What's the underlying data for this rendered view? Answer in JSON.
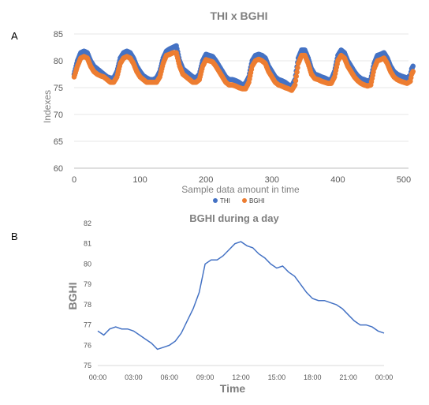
{
  "panels": {
    "a": "A",
    "b": "B"
  },
  "chart_data": [
    {
      "type": "scatter",
      "title": "THI x BGHI",
      "xlabel": "Sample data amount in time",
      "ylabel": "Indexes",
      "xlim": [
        0,
        500
      ],
      "ylim": [
        60,
        85
      ],
      "x_ticks": [
        "0",
        "100",
        "200",
        "300",
        "400",
        "500"
      ],
      "y_ticks": [
        "60",
        "65",
        "70",
        "75",
        "80",
        "85"
      ],
      "legend_position": "bottom-center",
      "series": [
        {
          "name": "THI",
          "color": "#4472c4",
          "points": [
            [
              0,
              77.5
            ],
            [
              5,
              80
            ],
            [
              10,
              81.5
            ],
            [
              15,
              81.8
            ],
            [
              20,
              81.5
            ],
            [
              25,
              80
            ],
            [
              30,
              79
            ],
            [
              35,
              78.5
            ],
            [
              40,
              78
            ],
            [
              45,
              77.5
            ],
            [
              50,
              77
            ],
            [
              55,
              76.8
            ],
            [
              60,
              76.8
            ],
            [
              65,
              78
            ],
            [
              70,
              80.5
            ],
            [
              75,
              81.5
            ],
            [
              80,
              81.8
            ],
            [
              85,
              81.5
            ],
            [
              90,
              80.5
            ],
            [
              95,
              79
            ],
            [
              100,
              78
            ],
            [
              105,
              77.2
            ],
            [
              110,
              76.8
            ],
            [
              115,
              76.5
            ],
            [
              120,
              76.5
            ],
            [
              125,
              76.8
            ],
            [
              130,
              78
            ],
            [
              135,
              80.5
            ],
            [
              140,
              81.8
            ],
            [
              145,
              82.2
            ],
            [
              150,
              82.5
            ],
            [
              155,
              82.8
            ],
            [
              160,
              80
            ],
            [
              165,
              78.5
            ],
            [
              170,
              78
            ],
            [
              175,
              77.5
            ],
            [
              180,
              77
            ],
            [
              185,
              76.8
            ],
            [
              190,
              77.5
            ],
            [
              195,
              80
            ],
            [
              200,
              81.2
            ],
            [
              205,
              81
            ],
            [
              210,
              80.8
            ],
            [
              215,
              80
            ],
            [
              220,
              79
            ],
            [
              225,
              78
            ],
            [
              230,
              77
            ],
            [
              235,
              76.5
            ],
            [
              240,
              76.5
            ],
            [
              245,
              76.3
            ],
            [
              250,
              76
            ],
            [
              255,
              75.5
            ],
            [
              260,
              75.8
            ],
            [
              265,
              77
            ],
            [
              270,
              80
            ],
            [
              275,
              81
            ],
            [
              280,
              81.2
            ],
            [
              285,
              81
            ],
            [
              290,
              80.5
            ],
            [
              295,
              79
            ],
            [
              300,
              78
            ],
            [
              305,
              77
            ],
            [
              310,
              76.5
            ],
            [
              315,
              76.3
            ],
            [
              320,
              76
            ],
            [
              325,
              75.5
            ],
            [
              330,
              75.3
            ],
            [
              335,
              76.5
            ],
            [
              340,
              80.5
            ],
            [
              345,
              82
            ],
            [
              350,
              82
            ],
            [
              355,
              80.5
            ],
            [
              360,
              78.5
            ],
            [
              365,
              77.5
            ],
            [
              370,
              77.3
            ],
            [
              375,
              77
            ],
            [
              380,
              76.8
            ],
            [
              385,
              76.5
            ],
            [
              390,
              76.5
            ],
            [
              395,
              78
            ],
            [
              400,
              81
            ],
            [
              405,
              82
            ],
            [
              410,
              81.5
            ],
            [
              415,
              80
            ],
            [
              420,
              79
            ],
            [
              425,
              78
            ],
            [
              430,
              77.2
            ],
            [
              435,
              76.7
            ],
            [
              440,
              76.5
            ],
            [
              445,
              76.2
            ],
            [
              450,
              76.5
            ],
            [
              455,
              79.5
            ],
            [
              460,
              81
            ],
            [
              465,
              81.2
            ],
            [
              470,
              81.5
            ],
            [
              475,
              80.5
            ],
            [
              480,
              79
            ],
            [
              485,
              78
            ],
            [
              490,
              77.5
            ],
            [
              495,
              77.2
            ],
            [
              500,
              77
            ],
            [
              505,
              76.8
            ],
            [
              510,
              77.3
            ],
            [
              512,
              78.5
            ],
            [
              514,
              79
            ]
          ]
        },
        {
          "name": "BGHI",
          "color": "#ed7d31",
          "points": [
            [
              0,
              77
            ],
            [
              5,
              79
            ],
            [
              10,
              80.5
            ],
            [
              15,
              80.8
            ],
            [
              20,
              80.5
            ],
            [
              25,
              79
            ],
            [
              30,
              78
            ],
            [
              35,
              77.5
            ],
            [
              40,
              77.2
            ],
            [
              45,
              77
            ],
            [
              50,
              76.5
            ],
            [
              55,
              76
            ],
            [
              60,
              76
            ],
            [
              65,
              77
            ],
            [
              70,
              79.5
            ],
            [
              75,
              80.5
            ],
            [
              80,
              80.8
            ],
            [
              85,
              80.5
            ],
            [
              90,
              79.5
            ],
            [
              95,
              78
            ],
            [
              100,
              77
            ],
            [
              105,
              76.5
            ],
            [
              110,
              76
            ],
            [
              115,
              76
            ],
            [
              120,
              76
            ],
            [
              125,
              76
            ],
            [
              130,
              77
            ],
            [
              135,
              79.5
            ],
            [
              140,
              81
            ],
            [
              145,
              81.2
            ],
            [
              150,
              81.5
            ],
            [
              155,
              81.5
            ],
            [
              160,
              79
            ],
            [
              165,
              77.5
            ],
            [
              170,
              77
            ],
            [
              175,
              76.5
            ],
            [
              180,
              76
            ],
            [
              185,
              76
            ],
            [
              190,
              76.5
            ],
            [
              195,
              79
            ],
            [
              200,
              80.2
            ],
            [
              205,
              80
            ],
            [
              210,
              79.8
            ],
            [
              215,
              79
            ],
            [
              220,
              78
            ],
            [
              225,
              77
            ],
            [
              230,
              76
            ],
            [
              235,
              75.5
            ],
            [
              240,
              75.5
            ],
            [
              245,
              75.3
            ],
            [
              250,
              75
            ],
            [
              255,
              74.8
            ],
            [
              260,
              74.8
            ],
            [
              265,
              76
            ],
            [
              270,
              79
            ],
            [
              275,
              80
            ],
            [
              280,
              80.3
            ],
            [
              285,
              80
            ],
            [
              290,
              79.5
            ],
            [
              295,
              78
            ],
            [
              300,
              77
            ],
            [
              305,
              76
            ],
            [
              310,
              75.5
            ],
            [
              315,
              75.3
            ],
            [
              320,
              75
            ],
            [
              325,
              74.8
            ],
            [
              330,
              74.5
            ],
            [
              335,
              75.5
            ],
            [
              340,
              79.5
            ],
            [
              345,
              81
            ],
            [
              350,
              81
            ],
            [
              355,
              79.5
            ],
            [
              360,
              77.5
            ],
            [
              365,
              76.7
            ],
            [
              370,
              76.5
            ],
            [
              375,
              76.2
            ],
            [
              380,
              76
            ],
            [
              385,
              75.8
            ],
            [
              390,
              75.8
            ],
            [
              395,
              77
            ],
            [
              400,
              80
            ],
            [
              405,
              81
            ],
            [
              410,
              80.5
            ],
            [
              415,
              79
            ],
            [
              420,
              78
            ],
            [
              425,
              77
            ],
            [
              430,
              76.3
            ],
            [
              435,
              75.8
            ],
            [
              440,
              75.5
            ],
            [
              445,
              75.3
            ],
            [
              450,
              75.5
            ],
            [
              455,
              78.5
            ],
            [
              460,
              80
            ],
            [
              465,
              80.2
            ],
            [
              470,
              80.5
            ],
            [
              475,
              79.5
            ],
            [
              480,
              78
            ],
            [
              485,
              77
            ],
            [
              490,
              76.5
            ],
            [
              495,
              76.2
            ],
            [
              500,
              76
            ],
            [
              505,
              75.8
            ],
            [
              510,
              76.2
            ],
            [
              512,
              77.5
            ],
            [
              514,
              78
            ]
          ]
        }
      ]
    },
    {
      "type": "line",
      "title": "BGHI during a day",
      "xlabel": "Time",
      "ylabel": "BGHI",
      "ylim": [
        75,
        82
      ],
      "x_ticks": [
        "00:00",
        "03:00",
        "06:00",
        "09:00",
        "12:00",
        "15:00",
        "18:00",
        "21:00",
        "00:00"
      ],
      "y_ticks": [
        "75",
        "76",
        "77",
        "78",
        "79",
        "80",
        "81",
        "82"
      ],
      "legend_position": "none",
      "series": [
        {
          "name": "",
          "color": "#4472c4",
          "x_hours": [
            0,
            0.5,
            1,
            1.5,
            2,
            2.5,
            3,
            3.5,
            4,
            4.5,
            5,
            5.5,
            6,
            6.5,
            7,
            7.5,
            8,
            8.5,
            9,
            9.5,
            10,
            10.5,
            11,
            11.5,
            12,
            12.5,
            13,
            13.5,
            14,
            14.5,
            15,
            15.5,
            16,
            16.5,
            17,
            17.5,
            18,
            18.5,
            19,
            19.5,
            20,
            20.5,
            21,
            21.5,
            22,
            22.5,
            23,
            23.5,
            24
          ],
          "values": [
            76.7,
            76.5,
            76.8,
            76.9,
            76.8,
            76.8,
            76.7,
            76.5,
            76.3,
            76.1,
            75.8,
            75.9,
            76.0,
            76.2,
            76.6,
            77.2,
            77.8,
            78.6,
            80.0,
            80.2,
            80.2,
            80.4,
            80.7,
            81.0,
            81.1,
            80.9,
            80.8,
            80.5,
            80.3,
            80.0,
            79.8,
            79.9,
            79.6,
            79.4,
            79.0,
            78.6,
            78.3,
            78.2,
            78.2,
            78.1,
            78.0,
            77.8,
            77.5,
            77.2,
            77.0,
            77.0,
            76.9,
            76.7,
            76.6
          ]
        }
      ]
    }
  ]
}
